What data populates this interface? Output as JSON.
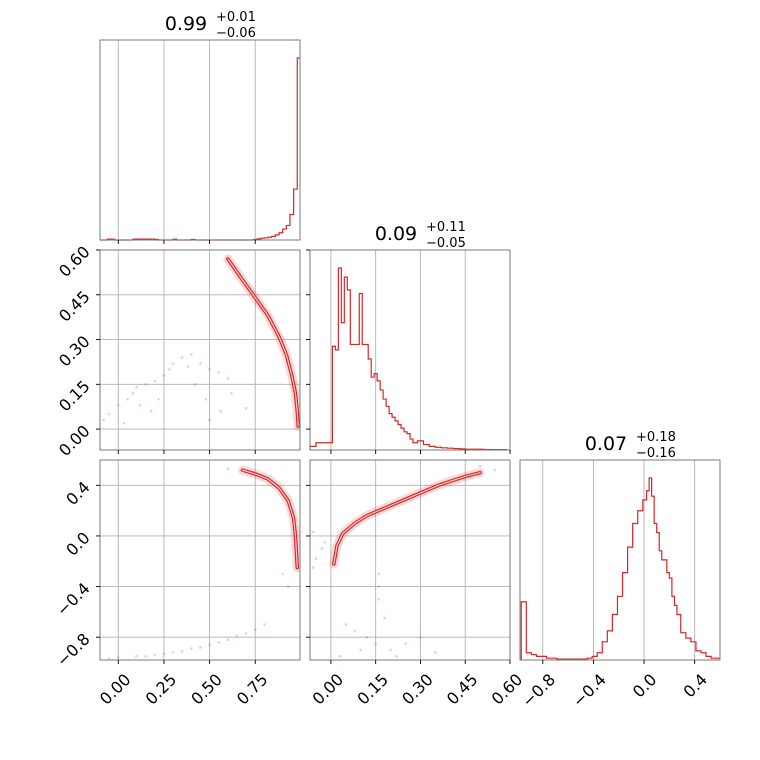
{
  "chart_data": {
    "type": "corner",
    "color": "#d62728",
    "params": [
      {
        "title": {
          "median": "0.99",
          "plus": "+0.01",
          "minus": "−0.06"
        },
        "range": [
          -0.1,
          0.995
        ],
        "ticks": [
          0.0,
          0.25,
          0.5,
          0.75
        ],
        "tick_labels": [
          "0.00",
          "0.25",
          "0.50",
          "0.75"
        ]
      },
      {
        "title": {
          "median": "0.09",
          "plus": "+0.11",
          "minus": "−0.05"
        },
        "range": [
          -0.07,
          0.6
        ],
        "ticks": [
          0.0,
          0.15,
          0.3,
          0.45,
          0.6
        ],
        "tick_labels": [
          "0.00",
          "0.15",
          "0.30",
          "0.45",
          "0.60"
        ]
      },
      {
        "title": {
          "median": "0.07",
          "plus": "+0.18",
          "minus": "−0.16"
        },
        "range": [
          -0.98,
          0.6
        ],
        "ticks": [
          -0.8,
          -0.4,
          0.0,
          0.4
        ],
        "tick_labels": [
          "−0.8",
          "−0.4",
          "0.0",
          "0.4"
        ]
      }
    ],
    "histograms": [
      {
        "x": [
          -0.09,
          -0.07,
          -0.05,
          -0.03,
          -0.01,
          0.01,
          0.03,
          0.05,
          0.07,
          0.09,
          0.11,
          0.13,
          0.15,
          0.17,
          0.19,
          0.21,
          0.23,
          0.25,
          0.27,
          0.29,
          0.31,
          0.33,
          0.35,
          0.37,
          0.39,
          0.41,
          0.43,
          0.45,
          0.47,
          0.49,
          0.51,
          0.53,
          0.55,
          0.57,
          0.59,
          0.61,
          0.63,
          0.65,
          0.67,
          0.69,
          0.71,
          0.73,
          0.75,
          0.77,
          0.79,
          0.81,
          0.83,
          0.85,
          0.87,
          0.89,
          0.91,
          0.93,
          0.95,
          0.97,
          0.99
        ],
        "values": [
          0,
          0,
          0.005,
          0.004,
          0,
          0,
          0,
          0,
          0,
          0.005,
          0.005,
          0.005,
          0.005,
          0.005,
          0.005,
          0.003,
          0,
          0,
          0,
          0,
          0.004,
          0,
          0,
          0,
          0,
          0.003,
          0,
          0,
          0,
          0,
          0,
          0,
          0,
          0,
          0,
          0,
          0,
          0,
          0,
          0,
          0,
          0,
          0.003,
          0.006,
          0.01,
          0.012,
          0.015,
          0.02,
          0.028,
          0.04,
          0.06,
          0.08,
          0.14,
          0.28,
          1.0
        ]
      },
      {
        "x": [
          -0.06,
          -0.04,
          -0.02,
          0.0,
          0.01,
          0.02,
          0.03,
          0.04,
          0.05,
          0.06,
          0.07,
          0.08,
          0.09,
          0.1,
          0.11,
          0.12,
          0.13,
          0.14,
          0.15,
          0.16,
          0.17,
          0.18,
          0.19,
          0.2,
          0.21,
          0.22,
          0.23,
          0.24,
          0.25,
          0.26,
          0.27,
          0.28,
          0.3,
          0.32,
          0.34,
          0.36,
          0.38,
          0.4,
          0.42,
          0.44,
          0.46,
          0.48,
          0.5,
          0.52,
          0.54,
          0.56,
          0.58
        ],
        "values": [
          0.02,
          0.04,
          0.04,
          0.04,
          0.57,
          0.55,
          1.0,
          0.7,
          0.95,
          0.88,
          0.58,
          0.58,
          0.58,
          0.86,
          0.58,
          0.58,
          0.5,
          0.4,
          0.42,
          0.38,
          0.33,
          0.28,
          0.24,
          0.2,
          0.18,
          0.16,
          0.14,
          0.12,
          0.1,
          0.09,
          0.06,
          0.04,
          0.05,
          0.03,
          0.02,
          0.015,
          0.012,
          0.01,
          0.008,
          0.006,
          0.004,
          0.004,
          0.004,
          0.003,
          0.002,
          0.002,
          0.002
        ]
      },
      {
        "x": [
          -0.95,
          -0.91,
          -0.87,
          -0.83,
          -0.79,
          -0.75,
          -0.71,
          -0.67,
          -0.63,
          -0.59,
          -0.55,
          -0.51,
          -0.47,
          -0.43,
          -0.39,
          -0.35,
          -0.31,
          -0.27,
          -0.23,
          -0.19,
          -0.15,
          -0.11,
          -0.07,
          -0.03,
          0.01,
          0.03,
          0.05,
          0.07,
          0.09,
          0.11,
          0.13,
          0.15,
          0.17,
          0.19,
          0.21,
          0.23,
          0.25,
          0.27,
          0.31,
          0.35,
          0.39,
          0.43,
          0.47,
          0.51,
          0.55,
          0.59
        ],
        "values": [
          0.32,
          0.04,
          0.03,
          0.02,
          0.02,
          0.01,
          0.01,
          0.005,
          0.005,
          0.005,
          0.005,
          0.005,
          0.005,
          0.01,
          0.02,
          0.04,
          0.1,
          0.16,
          0.25,
          0.35,
          0.48,
          0.62,
          0.75,
          0.82,
          0.88,
          0.93,
          1.0,
          0.9,
          0.75,
          0.7,
          0.6,
          0.55,
          0.55,
          0.48,
          0.45,
          0.35,
          0.3,
          0.25,
          0.15,
          0.12,
          0.1,
          0.05,
          0.04,
          0.02,
          0.01,
          0.01
        ]
      }
    ],
    "pairs": [
      {
        "x_param": 0,
        "y_param": 1,
        "ridge": [
          [
            0.6,
            0.57
          ],
          [
            0.68,
            0.5
          ],
          [
            0.75,
            0.44
          ],
          [
            0.82,
            0.38
          ],
          [
            0.88,
            0.31
          ],
          [
            0.92,
            0.25
          ],
          [
            0.95,
            0.18
          ],
          [
            0.97,
            0.12
          ],
          [
            0.98,
            0.06
          ],
          [
            0.985,
            0.01
          ]
        ],
        "scatter": [
          [
            -0.05,
            0.05
          ],
          [
            0.0,
            0.08
          ],
          [
            0.05,
            0.1
          ],
          [
            0.1,
            0.14
          ],
          [
            0.15,
            0.15
          ],
          [
            0.2,
            0.16
          ],
          [
            0.25,
            0.18
          ],
          [
            0.28,
            0.2
          ],
          [
            0.3,
            0.22
          ],
          [
            0.35,
            0.24
          ],
          [
            0.4,
            0.25
          ],
          [
            0.45,
            0.22
          ],
          [
            0.5,
            0.2
          ],
          [
            0.55,
            0.19
          ],
          [
            0.6,
            0.17
          ],
          [
            0.12,
            0.08
          ],
          [
            0.18,
            0.06
          ],
          [
            0.08,
            0.12
          ],
          [
            0.22,
            0.1
          ],
          [
            0.38,
            0.21
          ],
          [
            0.48,
            0.1
          ],
          [
            0.62,
            0.12
          ],
          [
            0.7,
            0.07
          ],
          [
            0.5,
            0.03
          ],
          [
            0.03,
            0.02
          ],
          [
            -0.08,
            0.03
          ],
          [
            0.42,
            0.15
          ],
          [
            0.56,
            0.06
          ]
        ]
      },
      {
        "x_param": 0,
        "y_param": 2,
        "ridge": [
          [
            0.68,
            0.52
          ],
          [
            0.75,
            0.49
          ],
          [
            0.82,
            0.45
          ],
          [
            0.88,
            0.38
          ],
          [
            0.93,
            0.28
          ],
          [
            0.96,
            0.14
          ],
          [
            0.97,
            0.0
          ],
          [
            0.975,
            -0.12
          ],
          [
            0.98,
            -0.25
          ]
        ],
        "scatter": [
          [
            -0.05,
            -0.97
          ],
          [
            0.0,
            -0.96
          ],
          [
            0.1,
            -0.95
          ],
          [
            0.2,
            -0.94
          ],
          [
            0.3,
            -0.92
          ],
          [
            0.4,
            -0.89
          ],
          [
            0.5,
            -0.86
          ],
          [
            0.6,
            -0.82
          ],
          [
            0.7,
            -0.77
          ],
          [
            0.75,
            -0.74
          ],
          [
            0.8,
            -0.7
          ],
          [
            0.25,
            -0.93
          ],
          [
            0.45,
            -0.88
          ],
          [
            0.55,
            -0.84
          ],
          [
            0.65,
            -0.79
          ],
          [
            0.15,
            -0.95
          ],
          [
            0.35,
            -0.91
          ],
          [
            0.6,
            0.53
          ],
          [
            0.9,
            -0.3
          ],
          [
            0.93,
            -0.4
          ]
        ]
      },
      {
        "x_param": 1,
        "y_param": 2,
        "ridge": [
          [
            0.01,
            -0.22
          ],
          [
            0.02,
            -0.08
          ],
          [
            0.04,
            0.02
          ],
          [
            0.08,
            0.1
          ],
          [
            0.12,
            0.16
          ],
          [
            0.18,
            0.22
          ],
          [
            0.24,
            0.28
          ],
          [
            0.3,
            0.34
          ],
          [
            0.36,
            0.4
          ],
          [
            0.41,
            0.44
          ],
          [
            0.45,
            0.47
          ],
          [
            0.5,
            0.5
          ]
        ],
        "scatter": [
          [
            -0.05,
            -0.18
          ],
          [
            -0.03,
            -0.1
          ],
          [
            -0.02,
            -0.05
          ],
          [
            -0.06,
            -0.25
          ],
          [
            0.05,
            -0.7
          ],
          [
            0.08,
            -0.75
          ],
          [
            0.12,
            -0.8
          ],
          [
            0.15,
            -0.85
          ],
          [
            0.2,
            -0.9
          ],
          [
            0.25,
            -0.85
          ],
          [
            0.3,
            -0.8
          ],
          [
            0.18,
            -0.65
          ],
          [
            0.16,
            -0.5
          ],
          [
            0.16,
            -0.4
          ],
          [
            0.16,
            -0.3
          ],
          [
            0.1,
            -0.9
          ],
          [
            0.03,
            -0.95
          ],
          [
            0.5,
            0.55
          ],
          [
            0.55,
            0.52
          ],
          [
            -0.06,
            0.03
          ],
          [
            0.22,
            -0.95
          ],
          [
            0.35,
            -0.92
          ]
        ]
      }
    ]
  }
}
